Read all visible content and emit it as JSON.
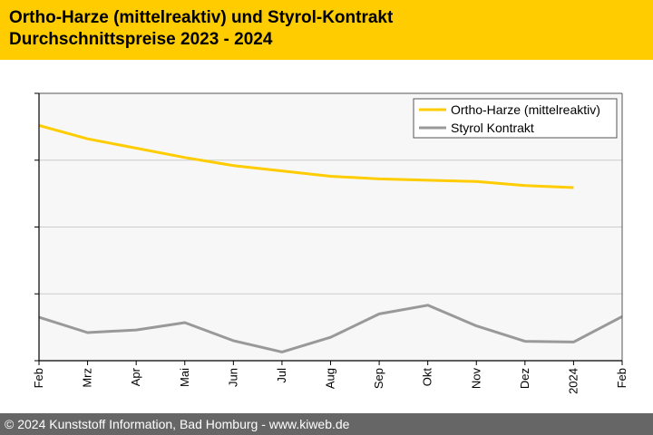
{
  "header": {
    "title": "Ortho-Harze (mittelreaktiv) und Styrol-Kontrakt",
    "subtitle": "Durchschnittspreise 2023 - 2024",
    "background": "#ffcc00"
  },
  "footer": {
    "text": "© 2024 Kunststoff Information, Bad Homburg - www.kiweb.de",
    "background": "#666666"
  },
  "chart_data": {
    "type": "line",
    "title": "",
    "xlabel": "",
    "ylabel": "",
    "categories": [
      "Feb",
      "Mrz",
      "Apr",
      "Mai",
      "Jun",
      "Jul",
      "Aug",
      "Sep",
      "Okt",
      "Nov",
      "Dez",
      "2024",
      "Feb"
    ],
    "ylim": [
      0,
      4
    ],
    "ygrid_values": [
      1,
      2,
      3
    ],
    "grid": "horizontal",
    "legend_position": "top-right",
    "series": [
      {
        "name": "Ortho-Harze (mittelreaktiv)",
        "color": "#ffcc00",
        "values": [
          3.52,
          3.32,
          3.18,
          3.04,
          2.92,
          2.84,
          2.76,
          2.72,
          2.7,
          2.68,
          2.62,
          2.59,
          null
        ]
      },
      {
        "name": "Styrol Kontrakt",
        "color": "#999999",
        "values": [
          0.65,
          0.42,
          0.46,
          0.57,
          0.3,
          0.13,
          0.35,
          0.7,
          0.83,
          0.52,
          0.29,
          0.28,
          0.66
        ]
      }
    ]
  }
}
